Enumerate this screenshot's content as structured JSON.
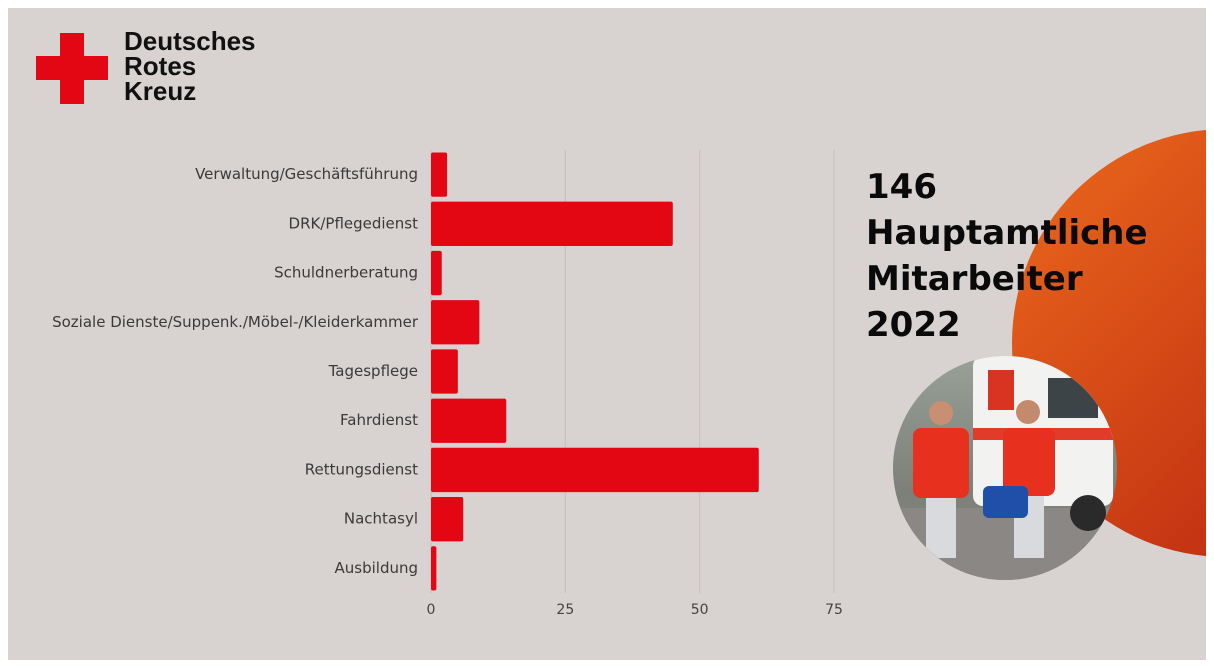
{
  "logo": {
    "lines": [
      "Deutsches",
      "Rotes",
      "Kreuz"
    ]
  },
  "chart_data": {
    "type": "hbar",
    "title": "146 Hauptamtliche Mitarbeiter 2022",
    "categories": [
      "Verwaltung/Geschäftsführung",
      "DRK/Pflegedienst",
      "Schuldnerberatung",
      "Soziale Dienste/Suppenk./Möbel-/Kleiderkammer",
      "Tagespflege",
      "Fahrdienst",
      "Rettungsdienst",
      "Nachtasyl",
      "Ausbildung"
    ],
    "values": [
      3,
      45,
      2,
      9,
      5,
      14,
      61,
      6,
      1
    ],
    "color": "#e30613",
    "xlim": [
      0,
      75
    ],
    "xticks": [
      0,
      25,
      50,
      75
    ],
    "grid": true
  }
}
